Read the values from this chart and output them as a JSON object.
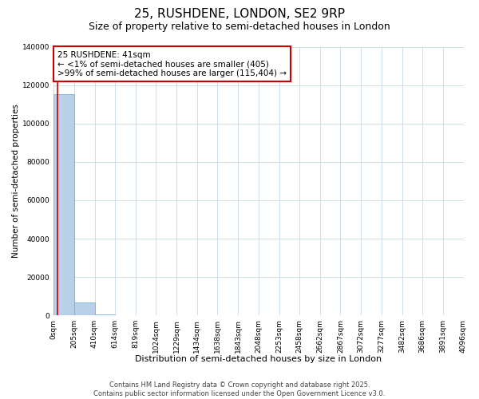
{
  "title": "25, RUSHDENE, LONDON, SE2 9RP",
  "subtitle": "Size of property relative to semi-detached houses in London",
  "xlabel": "Distribution of semi-detached houses by size in London",
  "ylabel": "Number of semi-detached properties",
  "annotation_line1": "25 RUSHDENE: 41sqm",
  "annotation_line2": "← <1% of semi-detached houses are smaller (405)",
  "annotation_line3": ">99% of semi-detached houses are larger (115,404) →",
  "footer_line1": "Contains HM Land Registry data © Crown copyright and database right 2025.",
  "footer_line2": "Contains public sector information licensed under the Open Government Licence v3.0.",
  "property_size": 41,
  "bin_edges": [
    0,
    205,
    410,
    614,
    819,
    1024,
    1229,
    1434,
    1638,
    1843,
    2048,
    2253,
    2458,
    2662,
    2867,
    3072,
    3277,
    3482,
    3686,
    3891,
    4096
  ],
  "bar_heights": [
    115404,
    6800,
    400,
    150,
    80,
    40,
    25,
    15,
    10,
    8,
    5,
    4,
    3,
    2,
    2,
    1,
    1,
    1,
    1,
    0
  ],
  "bar_color": "#b8d0e8",
  "bar_edge_color": "#6aaad4",
  "red_line_color": "#cc0000",
  "annotation_box_color": "#cc0000",
  "background_color": "#ffffff",
  "grid_color": "#c8d8ea",
  "ylim": [
    0,
    140000
  ],
  "yticks": [
    0,
    20000,
    40000,
    60000,
    80000,
    100000,
    120000,
    140000
  ],
  "title_fontsize": 11,
  "subtitle_fontsize": 9,
  "xlabel_fontsize": 8,
  "ylabel_fontsize": 7.5,
  "tick_fontsize": 6.5,
  "annotation_fontsize": 7.5,
  "footer_fontsize": 6
}
